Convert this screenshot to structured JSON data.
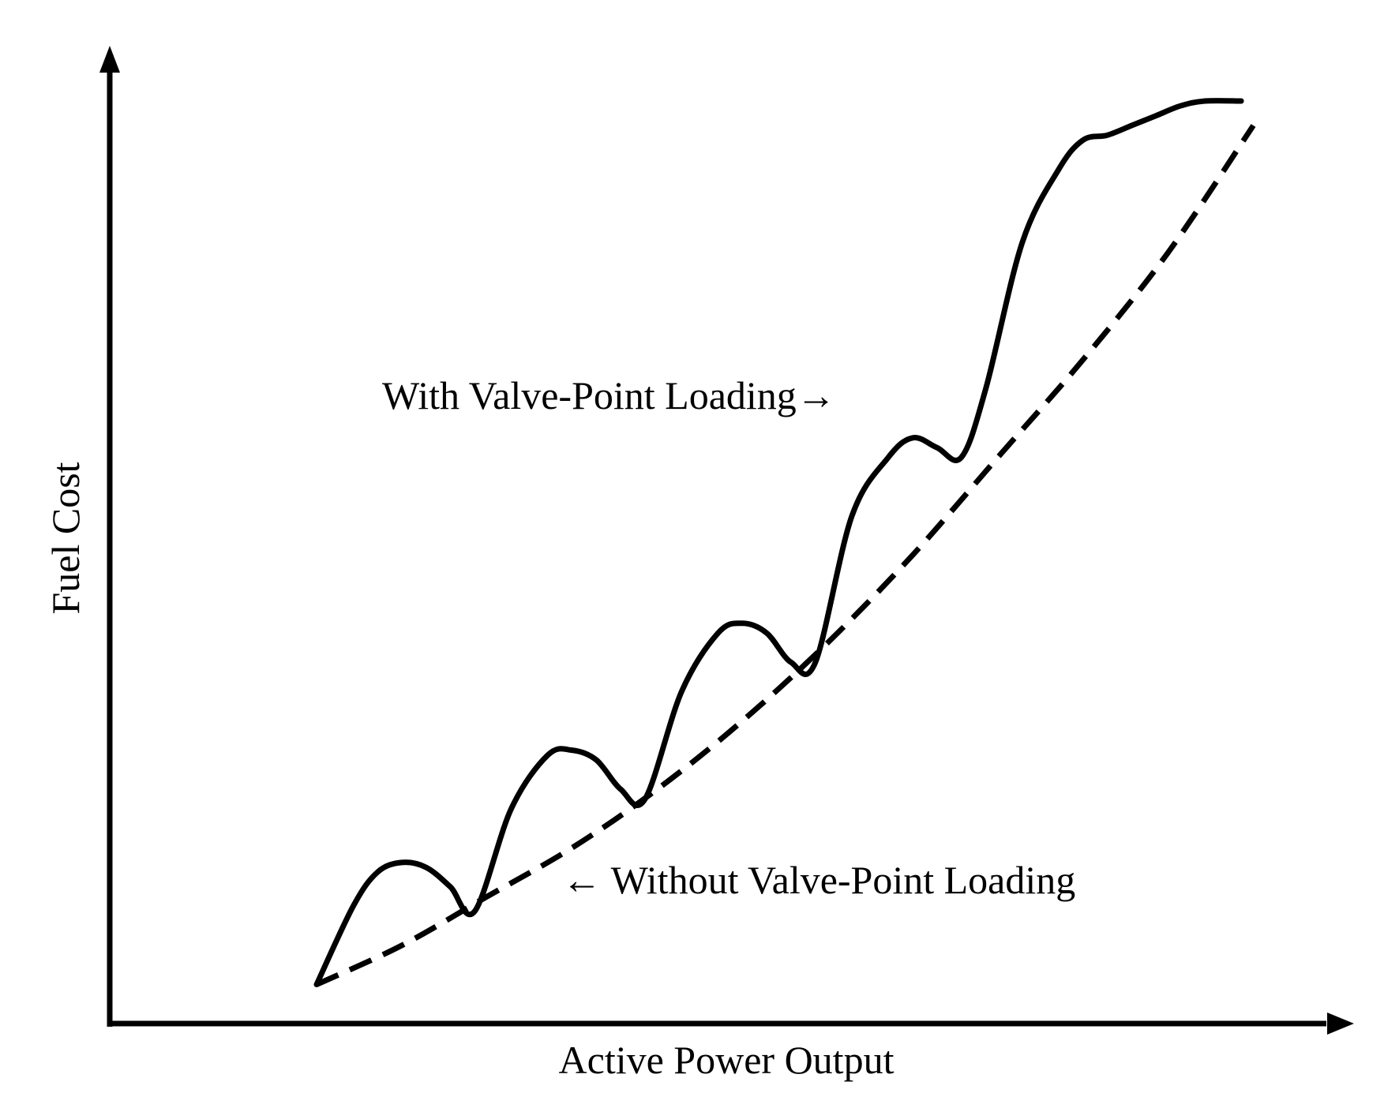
{
  "chart_data": {
    "type": "line",
    "title": "",
    "xlabel": "Active Power Output",
    "ylabel": "Fuel Cost",
    "xlim": [
      0,
      100
    ],
    "ylim": [
      0,
      100
    ],
    "grid": false,
    "legend": "none",
    "series": [
      {
        "name": "Without Valve-Point Loading",
        "style": "dashed",
        "x": [
          17,
          24,
          31,
          38,
          45,
          52,
          59,
          66,
          73,
          80,
          87,
          94
        ],
        "y": [
          4,
          8,
          13,
          18,
          24,
          31,
          39,
          48,
          58,
          68,
          79,
          92
        ]
      },
      {
        "name": "With Valve-Point Loading",
        "style": "solid",
        "x": [
          17,
          20,
          22,
          24,
          26,
          28,
          30,
          33,
          36,
          38,
          40,
          42,
          44,
          47,
          50,
          52,
          54,
          56,
          58,
          61,
          64,
          66,
          68,
          70,
          72,
          75,
          78,
          80,
          82,
          84,
          86,
          88,
          90,
          93
        ],
        "y": [
          4,
          12,
          15.5,
          16.5,
          16,
          14,
          11.5,
          22,
          27.5,
          28,
          27,
          24,
          23,
          34,
          40,
          41,
          40,
          37,
          37,
          52,
          58,
          60,
          59,
          58,
          65,
          80,
          87.5,
          90.5,
          91,
          92,
          93,
          94,
          94.5,
          94.5
        ]
      }
    ],
    "annotations": [
      {
        "text": "With Valve-Point Loading→",
        "target_series": "With Valve-Point Loading"
      },
      {
        "text": "← Without Valve-Point Loading",
        "target_series": "Without Valve-Point Loading"
      }
    ]
  }
}
